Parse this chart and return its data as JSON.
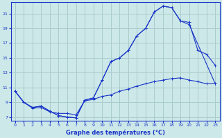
{
  "title": "Graphe des températures (°C)",
  "background_color": "#cce8e8",
  "grid_color": "#aacccc",
  "line_color": "#1a35c8",
  "xlim": [
    -0.5,
    23.5
  ],
  "ylim": [
    6.5,
    22.5
  ],
  "xticks": [
    0,
    1,
    2,
    3,
    4,
    5,
    6,
    7,
    8,
    9,
    10,
    11,
    12,
    13,
    14,
    15,
    16,
    17,
    18,
    19,
    20,
    21,
    22,
    23
  ],
  "yticks": [
    7,
    9,
    11,
    13,
    15,
    17,
    19,
    21
  ],
  "series1_x": [
    0,
    1,
    2,
    3,
    4,
    5,
    6,
    7,
    8,
    9,
    10,
    11,
    12,
    13,
    14,
    15,
    16,
    17,
    18,
    19,
    20,
    21,
    22,
    23
  ],
  "series1_y": [
    10.5,
    9.0,
    8.3,
    8.5,
    7.8,
    7.2,
    7.0,
    6.9,
    9.3,
    9.6,
    12.0,
    14.5,
    15.0,
    16.0,
    18.0,
    19.0,
    21.2,
    22.0,
    21.8,
    20.0,
    19.8,
    16.0,
    15.5,
    14.0
  ],
  "series2_x": [
    0,
    1,
    2,
    3,
    4,
    5,
    6,
    7,
    8,
    9,
    10,
    11,
    12,
    13,
    14,
    15,
    16,
    17,
    18,
    19,
    20,
    23
  ],
  "series2_y": [
    10.5,
    9.0,
    8.3,
    8.5,
    7.8,
    7.2,
    7.0,
    6.9,
    9.3,
    9.6,
    12.0,
    14.5,
    15.0,
    16.0,
    18.0,
    19.0,
    21.2,
    22.0,
    21.8,
    20.0,
    19.5,
    11.5
  ],
  "series3_x": [
    0,
    1,
    2,
    3,
    4,
    5,
    6,
    7,
    8,
    9,
    10,
    11,
    12,
    13,
    14,
    15,
    16,
    17,
    18,
    19,
    20,
    21,
    22,
    23
  ],
  "series3_y": [
    10.5,
    9.0,
    8.2,
    8.3,
    7.7,
    7.5,
    7.5,
    7.3,
    9.2,
    9.4,
    9.8,
    10.0,
    10.5,
    10.8,
    11.2,
    11.5,
    11.8,
    12.0,
    12.2,
    12.3,
    12.0,
    11.8,
    11.5,
    11.5
  ]
}
